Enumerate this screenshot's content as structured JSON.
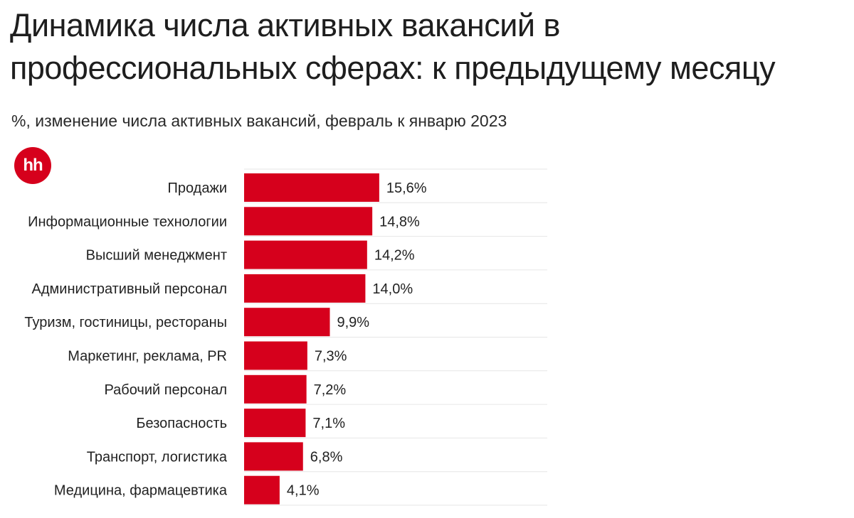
{
  "header": {
    "title": "Динамика числа активных вакансий в профессиональных сферах: к предыдущему месяцу",
    "subtitle": "%, изменение числа активных вакансий, февраль к январю 2023",
    "logo_text": "hh"
  },
  "colors": {
    "bar": "#d6001c",
    "logo": "#d6001c",
    "grid": "#e6e6e6",
    "text": "#222222"
  },
  "chart_data": {
    "type": "bar",
    "orientation": "horizontal",
    "title": "Динамика числа активных вакансий в профессиональных сферах: к предыдущему месяцу",
    "subtitle": "%, изменение числа активных вакансий, февраль к январю 2023",
    "xlabel": "",
    "ylabel": "",
    "xlim": [
      0,
      35
    ],
    "categories": [
      "Продажи",
      "Информационные технологии",
      "Высший менеджмент",
      "Административный персонал",
      "Туризм, гостиницы, рестораны",
      "Маркетинг, реклама, PR",
      "Рабочий персонал",
      "Безопасность",
      "Транспорт, логистика",
      "Медицина, фармацевтика"
    ],
    "values": [
      15.6,
      14.8,
      14.2,
      14.0,
      9.9,
      7.3,
      7.2,
      7.1,
      6.8,
      4.1
    ],
    "value_labels": [
      "15,6%",
      "14,8%",
      "14,2%",
      "14,0%",
      "9,9%",
      "7,3%",
      "7,2%",
      "7,1%",
      "6,8%",
      "4,1%"
    ]
  }
}
